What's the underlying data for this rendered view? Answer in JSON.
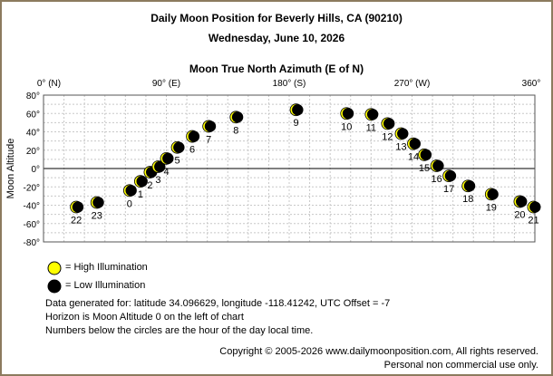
{
  "header": {
    "title": "Daily Moon Position for Beverly Hills, CA (90210)",
    "date": "Wednesday, June 10, 2026",
    "axis_title": "Moon True North Azimuth (E of N)"
  },
  "legend": {
    "high": "= High Illumination",
    "low": "= Low Illumination",
    "high_color": "#ffff00",
    "low_color": "#000000"
  },
  "info": {
    "line1": "Data generated for: latitude 34.096629, longitude -118.41242, UTC Offset = -7",
    "line2": "Horizon is Moon Altitude 0 on the left of chart",
    "line3": "Numbers below the circles are the hour of the day local time."
  },
  "footer": {
    "copyright": "Copyright © 2005-2026 www.dailymoonposition.com, All rights reserved.",
    "note": "Personal non commercial use only."
  },
  "chart_data": {
    "type": "scatter",
    "title": "Moon True North Azimuth (E of N)",
    "xlabel": "",
    "ylabel": "Moon Altitude",
    "xlim": [
      0,
      360
    ],
    "ylim": [
      -80,
      80
    ],
    "x_ticks": [
      "0° (N)",
      "90° (E)",
      "180° (S)",
      "270° (W)",
      "360°"
    ],
    "y_ticks": [
      "80°",
      "60°",
      "40°",
      "20°",
      "0°",
      "-20°",
      "-40°",
      "-60°",
      "-80°"
    ],
    "grid": true,
    "points": [
      {
        "hour": "22",
        "azimuth": 24,
        "altitude": -42
      },
      {
        "hour": "23",
        "azimuth": 39,
        "altitude": -37
      },
      {
        "hour": "0",
        "azimuth": 63,
        "altitude": -24
      },
      {
        "hour": "1",
        "azimuth": 71,
        "altitude": -14
      },
      {
        "hour": "2",
        "azimuth": 78,
        "altitude": -4
      },
      {
        "hour": "3",
        "azimuth": 84,
        "altitude": 2
      },
      {
        "hour": "4",
        "azimuth": 90,
        "altitude": 11
      },
      {
        "hour": "5",
        "azimuth": 98,
        "altitude": 23
      },
      {
        "hour": "6",
        "azimuth": 109,
        "altitude": 35
      },
      {
        "hour": "7",
        "azimuth": 121,
        "altitude": 46
      },
      {
        "hour": "8",
        "azimuth": 141,
        "altitude": 56
      },
      {
        "hour": "9",
        "azimuth": 185,
        "altitude": 64
      },
      {
        "hour": "10",
        "azimuth": 222,
        "altitude": 60
      },
      {
        "hour": "11",
        "azimuth": 240,
        "altitude": 59
      },
      {
        "hour": "12",
        "azimuth": 252,
        "altitude": 49
      },
      {
        "hour": "13",
        "azimuth": 262,
        "altitude": 38
      },
      {
        "hour": "14",
        "azimuth": 271,
        "altitude": 27
      },
      {
        "hour": "15",
        "azimuth": 279,
        "altitude": 15
      },
      {
        "hour": "16",
        "azimuth": 288,
        "altitude": 3
      },
      {
        "hour": "17",
        "azimuth": 297,
        "altitude": -8
      },
      {
        "hour": "18",
        "azimuth": 311,
        "altitude": -19
      },
      {
        "hour": "19",
        "azimuth": 328,
        "altitude": -28
      },
      {
        "hour": "20",
        "azimuth": 349,
        "altitude": -36
      },
      {
        "hour": "21",
        "azimuth": 359,
        "altitude": -42
      }
    ]
  }
}
